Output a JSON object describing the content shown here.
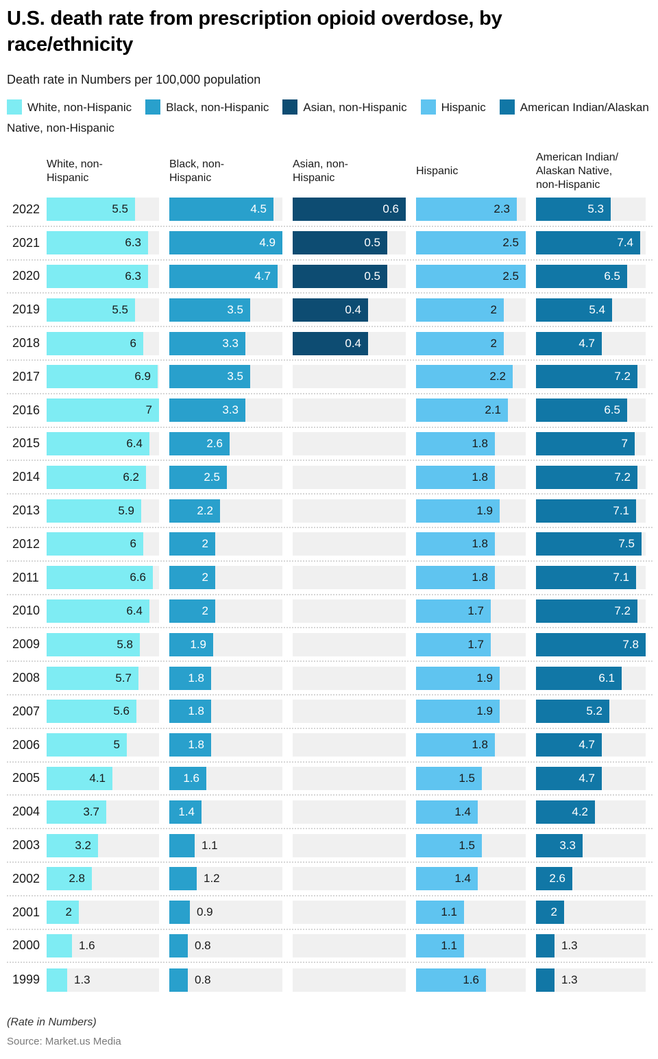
{
  "header": {
    "title_line1": "U.S. death rate from prescription opioid overdose, by",
    "title_line2": "race/ethnicity",
    "subtitle": "Death rate in Numbers per 100,000 population"
  },
  "legend": {
    "items": [
      {
        "key": "white-non-hispanic",
        "color": "#7EECF3",
        "label_parts": [
          "White, non-Hispanic"
        ]
      },
      {
        "key": "black-non-hispanic",
        "color": "#29A0CC",
        "label_parts": [
          "Black, non-Hispanic"
        ]
      },
      {
        "key": "asian-non-hispanic",
        "color": "#0D4C72",
        "label_parts": [
          "Asian, non-Hispanic"
        ]
      },
      {
        "key": "hispanic",
        "color": "#5FC4F0",
        "label_parts": [
          "Hispanic"
        ]
      },
      {
        "key": "american-indian-alaskan-native",
        "color": "#1177A6",
        "label_parts": [
          "American Indian/",
          "Alaskan Native, non-Hispanic"
        ]
      }
    ]
  },
  "chart_data": {
    "type": "bar",
    "orientation": "horizontal",
    "title": "U.S. death rate from prescription opioid overdose, by race/ethnicity",
    "subtitle": "Death rate in Numbers per 100,000 population",
    "unit": "deaths per 100,000 population",
    "legend_position": "top",
    "grid": false,
    "categories": [
      2022,
      2021,
      2020,
      2019,
      2018,
      2017,
      2016,
      2015,
      2014,
      2013,
      2012,
      2011,
      2010,
      2009,
      2008,
      2007,
      2006,
      2005,
      2004,
      2003,
      2002,
      2001,
      2000,
      1999
    ],
    "series": [
      {
        "key": "white-non-hispanic",
        "name": "White, non-Hispanic",
        "header_lines": [
          "White, non-",
          "Hispanic"
        ],
        "color": "#7EECF3",
        "label_style": "dark",
        "scale_max": 7,
        "values": [
          5.5,
          6.3,
          6.3,
          5.5,
          6,
          6.9,
          7,
          6.4,
          6.2,
          5.9,
          6,
          6.6,
          6.4,
          5.8,
          5.7,
          5.6,
          5,
          4.1,
          3.7,
          3.2,
          2.8,
          2,
          1.6,
          1.3
        ]
      },
      {
        "key": "black-non-hispanic",
        "name": "Black, non-Hispanic",
        "header_lines": [
          "Black, non-",
          "Hispanic"
        ],
        "color": "#29A0CC",
        "label_style": "light",
        "scale_max": 4.9,
        "values": [
          4.5,
          4.9,
          4.7,
          3.5,
          3.3,
          3.5,
          3.3,
          2.6,
          2.5,
          2.2,
          2,
          2,
          2,
          1.9,
          1.8,
          1.8,
          1.8,
          1.6,
          1.4,
          1.1,
          1.2,
          0.9,
          0.8,
          0.8
        ]
      },
      {
        "key": "asian-non-hispanic",
        "name": "Asian, non-Hispanic",
        "header_lines": [
          "Asian, non-",
          "Hispanic"
        ],
        "color": "#0D4C72",
        "label_style": "light",
        "scale_max": 0.6,
        "values": [
          0.6,
          0.5,
          0.5,
          0.4,
          0.4,
          null,
          null,
          null,
          null,
          null,
          null,
          null,
          null,
          null,
          null,
          null,
          null,
          null,
          null,
          null,
          null,
          null,
          null,
          null
        ]
      },
      {
        "key": "hispanic",
        "name": "Hispanic",
        "header_lines": [
          "Hispanic"
        ],
        "color": "#5FC4F0",
        "label_style": "dark",
        "scale_max": 2.5,
        "values": [
          2.3,
          2.5,
          2.5,
          2,
          2,
          2.2,
          2.1,
          1.8,
          1.8,
          1.9,
          1.8,
          1.8,
          1.7,
          1.7,
          1.9,
          1.9,
          1.8,
          1.5,
          1.4,
          1.5,
          1.4,
          1.1,
          1.1,
          1.6
        ]
      },
      {
        "key": "american-indian-alaskan-native",
        "name": "American Indian/Alaskan Native, non-Hispanic",
        "header_lines": [
          "American Indian/",
          "Alaskan Native,",
          "non-Hispanic"
        ],
        "color": "#1177A6",
        "label_style": "light",
        "scale_max": 7.8,
        "values": [
          5.3,
          7.4,
          6.5,
          5.4,
          4.7,
          7.2,
          6.5,
          7,
          7.2,
          7.1,
          7.5,
          7.1,
          7.2,
          7.8,
          6.1,
          5.2,
          4.7,
          4.7,
          4.2,
          3.3,
          2.6,
          2,
          1.3,
          1.3
        ]
      }
    ],
    "colors": {
      "track_background": "#f0f0f0",
      "dark_value_label": "#1a1a1a",
      "light_value_label": "#ffffff"
    }
  },
  "footer": {
    "note": "(Rate in Numbers)",
    "source": "Source: Market.us Media"
  }
}
